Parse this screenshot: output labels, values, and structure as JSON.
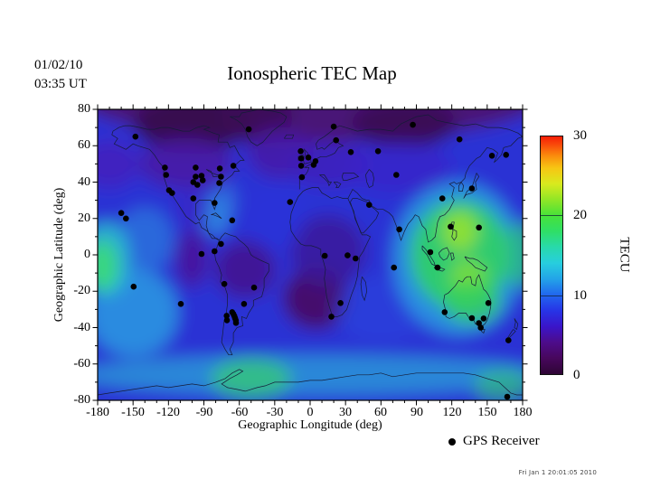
{
  "header": {
    "date": "01/02/10",
    "time": "03:35 UT",
    "title": "Ionospheric TEC Map"
  },
  "chart_data": {
    "type": "heatmap",
    "title": "Ionospheric TEC Map",
    "xlabel": "Geographic Longitude (deg)",
    "ylabel": "Geographic Latitude (deg)",
    "xlim": [
      -180,
      180
    ],
    "ylim": [
      -80,
      80
    ],
    "x_ticks": [
      -180,
      -150,
      -120,
      -90,
      -60,
      -30,
      0,
      30,
      60,
      90,
      120,
      150,
      180
    ],
    "y_ticks": [
      80,
      60,
      40,
      20,
      0,
      -20,
      -40,
      -60,
      -80
    ],
    "grid": false,
    "colorbar": {
      "label": "TECU",
      "min": 0,
      "max": 30,
      "ticks": [
        30,
        20,
        10,
        0
      ],
      "inner_lines": [
        20,
        10
      ],
      "stops": [
        {
          "value": 0,
          "color": "#2e0535"
        },
        {
          "value": 2,
          "color": "#47075c"
        },
        {
          "value": 4,
          "color": "#4d0c8a"
        },
        {
          "value": 6,
          "color": "#3a15c9"
        },
        {
          "value": 8,
          "color": "#2734e6"
        },
        {
          "value": 10,
          "color": "#2166ee"
        },
        {
          "value": 12,
          "color": "#23a3e8"
        },
        {
          "value": 14,
          "color": "#27cede"
        },
        {
          "value": 16,
          "color": "#28d9ac"
        },
        {
          "value": 18,
          "color": "#2fdf67"
        },
        {
          "value": 20,
          "color": "#47e23a"
        },
        {
          "value": 22,
          "color": "#90e626"
        },
        {
          "value": 24,
          "color": "#d8ea1e"
        },
        {
          "value": 26,
          "color": "#f7c613"
        },
        {
          "value": 27.5,
          "color": "#fa8e0d"
        },
        {
          "value": 29,
          "color": "#f9480a"
        },
        {
          "value": 30,
          "color": "#f61e06"
        }
      ]
    },
    "legend": {
      "marker": "gps-receiver-dot",
      "label": "GPS Receiver"
    },
    "timestamp": "Fri Jan  1 20:01:05 2010",
    "base_tecu": 8,
    "base_color": "#2b31d4",
    "tec_features": [
      {
        "lon": 0,
        "lat": 88,
        "rx": 200,
        "ry": 26,
        "tecu": 4,
        "color": "#4a1277",
        "opacity": 1
      },
      {
        "lon": -100,
        "lat": 72,
        "rx": 50,
        "ry": 16,
        "tecu": 1.5,
        "color": "#350a4a",
        "opacity": 0.9
      },
      {
        "lon": -45,
        "lat": 75,
        "rx": 30,
        "ry": 14,
        "tecu": 2,
        "color": "#3b0c55",
        "opacity": 0.85
      },
      {
        "lon": 80,
        "lat": 72,
        "rx": 45,
        "ry": 13,
        "tecu": 2,
        "color": "#390b52",
        "opacity": 0.9
      },
      {
        "lon": -25,
        "lat": 56,
        "rx": 28,
        "ry": 14,
        "tecu": 5,
        "color": "#4a17a2",
        "opacity": 0.8
      },
      {
        "lon": -105,
        "lat": 50,
        "rx": 40,
        "ry": 14,
        "tecu": 5,
        "color": "#4a17a2",
        "opacity": 0.85
      },
      {
        "lon": 15,
        "lat": 50,
        "rx": 35,
        "ry": 13,
        "tecu": 6,
        "color": "#4020b8",
        "opacity": 0.75
      },
      {
        "lon": 75,
        "lat": 48,
        "rx": 45,
        "ry": 14,
        "tecu": 6.5,
        "color": "#3a25c8",
        "opacity": 0.7
      },
      {
        "lon": -170,
        "lat": 50,
        "rx": 25,
        "ry": 13,
        "tecu": 6,
        "color": "#4a20b8",
        "opacity": 0.7
      },
      {
        "lon": -55,
        "lat": -8,
        "rx": 26,
        "ry": 16,
        "tecu": 5,
        "color": "#43128c",
        "opacity": 0.85
      },
      {
        "lon": 5,
        "lat": -24,
        "rx": 28,
        "ry": 17,
        "tecu": 3.5,
        "color": "#470c62",
        "opacity": 0.9
      },
      {
        "lon": 15,
        "lat": 2,
        "rx": 32,
        "ry": 20,
        "tecu": 5.5,
        "color": "#3d1696",
        "opacity": 0.8
      },
      {
        "lon": -100,
        "lat": -2,
        "rx": 14,
        "ry": 16,
        "tecu": 5,
        "color": "#4c1292",
        "opacity": 0.8
      },
      {
        "lon": -80,
        "lat": 22,
        "rx": 12,
        "ry": 11,
        "tecu": 12,
        "color": "#2e8fe2",
        "opacity": 0.85
      },
      {
        "lon": -72,
        "lat": 30,
        "rx": 10,
        "ry": 10,
        "tecu": 11,
        "color": "#2e7ee0",
        "opacity": 0.6
      },
      {
        "lon": -100,
        "lat": 25,
        "rx": 14,
        "ry": 10,
        "tecu": 7,
        "color": "#3c22c0",
        "opacity": 0.6
      },
      {
        "lon": -140,
        "lat": 8,
        "rx": 24,
        "ry": 18,
        "tecu": 11,
        "color": "#2a7ade",
        "opacity": 0.75
      },
      {
        "lon": -150,
        "lat": -32,
        "rx": 38,
        "ry": 24,
        "tecu": 13,
        "color": "#2aa2e2",
        "opacity": 0.8
      },
      {
        "lon": -173,
        "lat": -2,
        "rx": 20,
        "ry": 20,
        "tecu": 15,
        "color": "#2cc2cf",
        "opacity": 0.85
      },
      {
        "lon": -176,
        "lat": -6,
        "rx": 13,
        "ry": 14,
        "tecu": 19,
        "color": "#38dc74",
        "opacity": 0.9
      },
      {
        "lon": -30,
        "lat": 20,
        "rx": 25,
        "ry": 18,
        "tecu": 9,
        "color": "#2b35da",
        "opacity": 0.6
      },
      {
        "lon": 60,
        "lat": -30,
        "rx": 40,
        "ry": 18,
        "tecu": 9,
        "color": "#2b44de",
        "opacity": 0.6
      },
      {
        "lon": 125,
        "lat": -2,
        "rx": 55,
        "ry": 42,
        "tecu": 13,
        "color": "#2a9ce2",
        "opacity": 0.85
      },
      {
        "lon": 127,
        "lat": 0,
        "rx": 42,
        "ry": 30,
        "tecu": 19,
        "color": "#2fd163",
        "opacity": 0.9
      },
      {
        "lon": 127,
        "lat": 13,
        "rx": 15,
        "ry": 11,
        "tecu": 22,
        "color": "#9be32a",
        "opacity": 0.85
      },
      {
        "lon": 134,
        "lat": -13,
        "rx": 15,
        "ry": 10,
        "tecu": 22,
        "color": "#8ade2f",
        "opacity": 0.8
      },
      {
        "lon": 137,
        "lat": -26,
        "rx": 24,
        "ry": 12,
        "tecu": 19,
        "color": "#35cf5e",
        "opacity": 0.8
      },
      {
        "lon": 178,
        "lat": 0,
        "rx": 14,
        "ry": 18,
        "tecu": 17,
        "color": "#2ec47f",
        "opacity": 0.75
      },
      {
        "lon": 0,
        "lat": -66,
        "rx": 200,
        "ry": 11,
        "tecu": 12.5,
        "color": "#2b9ed8",
        "opacity": 0.8
      },
      {
        "lon": -50,
        "lat": -68,
        "rx": 34,
        "ry": 11,
        "tecu": 17,
        "color": "#32c878",
        "opacity": 0.8
      },
      {
        "lon": 163,
        "lat": -72,
        "rx": 24,
        "ry": 9,
        "tecu": 16,
        "color": "#32c878",
        "opacity": 0.65
      }
    ],
    "gps_receivers": [
      [
        -148,
        65
      ],
      [
        -52,
        69
      ],
      [
        -160,
        23
      ],
      [
        -156,
        20
      ],
      [
        -123,
        48
      ],
      [
        -122,
        44
      ],
      [
        -119.5,
        35.5
      ],
      [
        -117,
        34
      ],
      [
        -97,
        48
      ],
      [
        -99,
        40
      ],
      [
        -95.5,
        38.5
      ],
      [
        -92,
        43.5
      ],
      [
        -91,
        41
      ],
      [
        -97,
        43
      ],
      [
        -76.5,
        47.5
      ],
      [
        -75.5,
        43
      ],
      [
        -77,
        39.5
      ],
      [
        -65,
        49
      ],
      [
        -99,
        31
      ],
      [
        -81,
        28.5
      ],
      [
        -66,
        19
      ],
      [
        -75.5,
        6
      ],
      [
        -81,
        2
      ],
      [
        -92,
        0.5
      ],
      [
        -72.7,
        -16
      ],
      [
        -47.5,
        -18
      ],
      [
        -109.5,
        -27
      ],
      [
        -149.5,
        -17.5
      ],
      [
        -56,
        -27
      ],
      [
        -70.7,
        -33.5
      ],
      [
        -70.5,
        -36
      ],
      [
        -66,
        -31.5
      ],
      [
        -65,
        -32.5
      ],
      [
        -64.3,
        -33.6
      ],
      [
        -63.6,
        -34.8
      ],
      [
        -63,
        -36
      ],
      [
        -62.8,
        -37.4
      ],
      [
        167,
        -78
      ],
      [
        -8,
        57
      ],
      [
        -7.5,
        53
      ],
      [
        -1.5,
        53.5
      ],
      [
        4.5,
        51.5
      ],
      [
        3,
        49.5
      ],
      [
        -7.6,
        49
      ],
      [
        -7,
        42.7
      ],
      [
        -17,
        29
      ],
      [
        20,
        70.5
      ],
      [
        22,
        63
      ],
      [
        34.5,
        56.5
      ],
      [
        57.5,
        57
      ],
      [
        87,
        71.5
      ],
      [
        126.5,
        63.5
      ],
      [
        154,
        54.5
      ],
      [
        166,
        55
      ],
      [
        73,
        44
      ],
      [
        50,
        27.5
      ],
      [
        75.5,
        14
      ],
      [
        101.8,
        1.5
      ],
      [
        107.9,
        -7
      ],
      [
        112,
        31
      ],
      [
        137,
        36.5
      ],
      [
        119,
        15.5
      ],
      [
        143,
        15
      ],
      [
        71,
        -7
      ],
      [
        12.4,
        -0.5
      ],
      [
        31.7,
        -0.3
      ],
      [
        38.5,
        -2
      ],
      [
        25.7,
        -26.5
      ],
      [
        18,
        -34
      ],
      [
        114,
        -31.5
      ],
      [
        137,
        -34.8
      ],
      [
        143,
        -37.5
      ],
      [
        147,
        -35
      ],
      [
        151,
        -26.5
      ],
      [
        144.5,
        -40
      ],
      [
        168,
        -47
      ]
    ]
  }
}
